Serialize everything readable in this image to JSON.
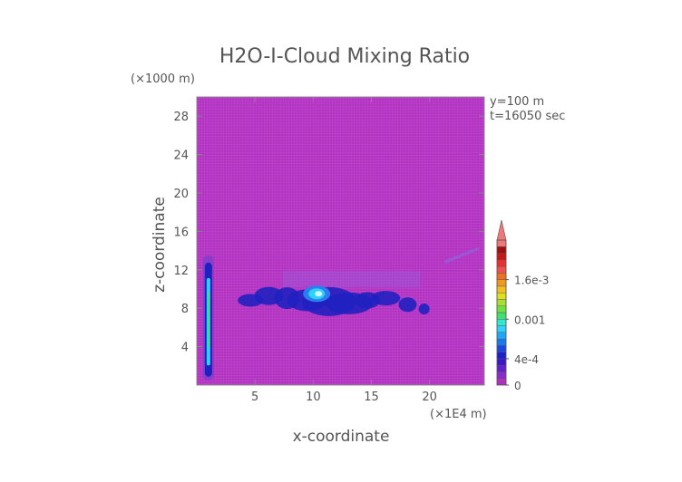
{
  "chart_data": {
    "type": "heatmap",
    "title": "H2O-I-Cloud Mixing Ratio",
    "xlabel": "x-coordinate",
    "ylabel": "z-coordinate",
    "x_unit": "(×1E4 m)",
    "y_unit": "(×1000 m)",
    "info": [
      "y=100 m",
      "t=16050 sec"
    ],
    "xlim": [
      0,
      24.7
    ],
    "ylim": [
      0,
      30
    ],
    "xticks": [
      5,
      10,
      15,
      20
    ],
    "yticks": [
      4,
      8,
      12,
      16,
      20,
      24,
      28
    ],
    "colorbar": {
      "min": 0,
      "max": 0.0022,
      "tick_values": [
        0,
        0.0004,
        0.001,
        0.0016
      ],
      "tick_labels": [
        "0",
        "4e-4",
        "0.001",
        "1.6e-3"
      ],
      "extend": "max"
    },
    "colors": {
      "background": "#b030c0",
      "low": "#2020c0",
      "mid": "#30d0ff",
      "high": "#40e070",
      "over": "#f07878"
    },
    "features": [
      {
        "type": "column",
        "x_center": 1.0,
        "z_range": [
          0.5,
          13.5
        ],
        "peak_value": 0.0011
      },
      {
        "type": "cloud_band",
        "x_range": [
          4.3,
          20.0
        ],
        "z_range": [
          6.8,
          11.3
        ],
        "peak_value": 0.0005
      },
      {
        "type": "core",
        "x_center": 10.3,
        "z_center": 9.5,
        "peak_value": 0.0007
      }
    ]
  }
}
